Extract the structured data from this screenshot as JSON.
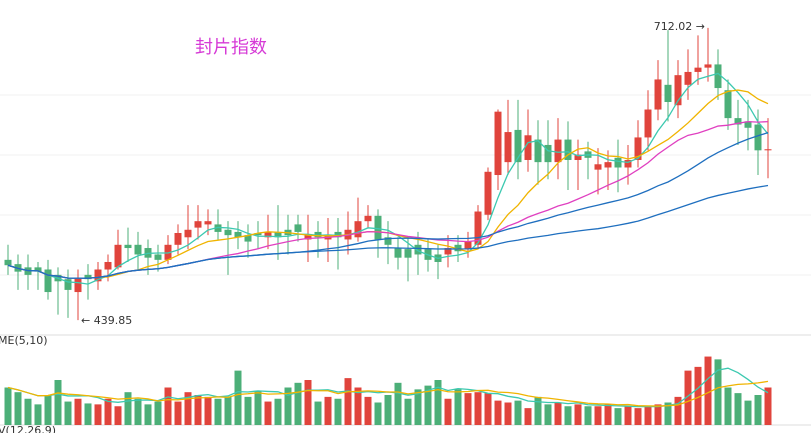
{
  "chart_data": {
    "type": "candlestick",
    "title": "封片指数",
    "high_annotation": "712.02 →",
    "low_annotation": "← 439.85",
    "volume_label": "ME(5,10)",
    "macd_label": "V(12,26,9)",
    "up_color": "#e0443c",
    "down_color": "#4caf78",
    "ylim": [
      426,
      738
    ],
    "vlim": [
      0,
      80
    ],
    "open": [
      496,
      492,
      489,
      489,
      487,
      482,
      478,
      466,
      482,
      476,
      487,
      489,
      510,
      510,
      507,
      501,
      496,
      510,
      517,
      526,
      529,
      529,
      524,
      522,
      519,
      521,
      517,
      522,
      524,
      529,
      515,
      522,
      515,
      522,
      515,
      517,
      532,
      537,
      517,
      507,
      506,
      510,
      506,
      501,
      501,
      510,
      506,
      510,
      538,
      575,
      587,
      617,
      589,
      608,
      603,
      587,
      608,
      589,
      597,
      580,
      582,
      591,
      582,
      589,
      610,
      636,
      659,
      640,
      659,
      671,
      675,
      678,
      654,
      628,
      625,
      622,
      598
    ],
    "close": [
      491,
      485,
      482,
      485,
      466,
      476,
      468,
      479,
      478,
      487,
      494,
      510,
      507,
      501,
      498,
      496,
      510,
      521,
      524,
      532,
      532,
      522,
      519,
      517,
      513,
      519,
      522,
      517,
      519,
      522,
      519,
      517,
      519,
      517,
      524,
      532,
      537,
      515,
      510,
      498,
      498,
      501,
      496,
      494,
      507,
      504,
      513,
      541,
      578,
      634,
      615,
      587,
      612,
      587,
      587,
      608,
      589,
      594,
      591,
      585,
      587,
      582,
      589,
      610,
      636,
      664,
      643,
      668,
      671,
      675,
      678,
      656,
      628,
      622,
      619,
      598,
      599
    ],
    "high": [
      510,
      501,
      501,
      494,
      496,
      489,
      487,
      487,
      492,
      494,
      501,
      524,
      526,
      522,
      515,
      510,
      519,
      529,
      547,
      547,
      543,
      543,
      532,
      532,
      529,
      532,
      538,
      547,
      538,
      538,
      538,
      532,
      535,
      535,
      541,
      554,
      547,
      543,
      532,
      517,
      517,
      522,
      515,
      510,
      519,
      519,
      522,
      547,
      582,
      636,
      645,
      645,
      636,
      626,
      626,
      628,
      625,
      608,
      606,
      600,
      598,
      608,
      603,
      626,
      654,
      682,
      710,
      682,
      692,
      705,
      712.02,
      692,
      664,
      645,
      645,
      636,
      628
    ],
    "low": [
      482,
      468,
      468,
      468,
      459,
      445,
      442,
      439.85,
      459,
      468,
      476,
      487,
      494,
      487,
      482,
      485,
      492,
      501,
      506,
      515,
      519,
      515,
      482,
      506,
      498,
      506,
      506,
      496,
      501,
      513,
      494,
      498,
      494,
      487,
      501,
      513,
      526,
      498,
      492,
      487,
      476,
      482,
      485,
      478,
      489,
      494,
      498,
      506,
      533,
      561,
      575,
      571,
      578,
      566,
      571,
      571,
      561,
      561,
      571,
      557,
      561,
      559,
      566,
      582,
      598,
      626,
      625,
      628,
      645,
      659,
      662,
      645,
      617,
      603,
      598,
      575,
      572
    ],
    "volume": [
      40,
      35,
      28,
      22,
      32,
      48,
      25,
      28,
      23,
      22,
      28,
      20,
      35,
      28,
      22,
      25,
      40,
      25,
      35,
      32,
      30,
      28,
      30,
      58,
      30,
      36,
      25,
      28,
      40,
      45,
      48,
      25,
      30,
      28,
      50,
      40,
      30,
      24,
      32,
      45,
      28,
      38,
      42,
      48,
      28,
      38,
      34,
      35,
      34,
      26,
      24,
      26,
      18,
      30,
      22,
      24,
      20,
      22,
      20,
      20,
      22,
      18,
      20,
      18,
      20,
      22,
      24,
      30,
      58,
      62,
      73,
      70,
      40,
      34,
      26,
      32,
      40
    ]
  }
}
